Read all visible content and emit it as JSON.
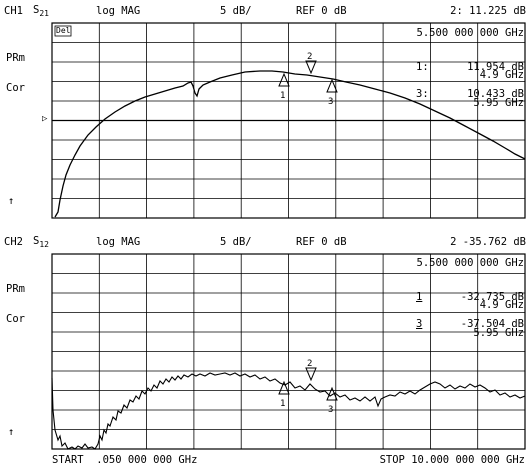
{
  "ch1": {
    "channel": "CH1",
    "param": "S",
    "param_sub": "21",
    "format": "log MAG",
    "scale": "5 dB/",
    "ref": "REF 0 dB",
    "active_marker": "2: 11.225 dB",
    "marker_freq": "5.500 000 000 GHz",
    "status_box": "Del",
    "side_labels": [
      "PRm",
      "Cor"
    ],
    "reference_arrow": "▷",
    "stimulus_arrow": "↑",
    "markers": [
      {
        "label": "1:",
        "value": "11.954 dB",
        "freq": "4.9 GHz"
      },
      {
        "label": "3:",
        "value": "10.433 dB",
        "freq": "5.95 GHz"
      }
    ],
    "trace_markers": [
      "1",
      "2",
      "3"
    ]
  },
  "ch2": {
    "channel": "CH2",
    "param": "S",
    "param_sub": "12",
    "format": "log MAG",
    "scale": "5 dB/",
    "ref": "REF 0 dB",
    "active_marker": "2 -35.762 dB",
    "marker_freq": "5.500 000 000 GHz",
    "side_labels": [
      "PRm",
      "Cor"
    ],
    "stimulus_arrow": "↑",
    "markers": [
      {
        "label": "1",
        "value": "-32.735 dB",
        "freq": "4.9 GHz"
      },
      {
        "label": "3",
        "value": "-37.504 dB",
        "freq": "5.95 GHz"
      }
    ],
    "trace_markers": [
      "1",
      "2",
      "3"
    ]
  },
  "footer": {
    "start": "START  .050 000 000 GHz",
    "stop": "STOP 10.000 000 000 GHz"
  }
}
